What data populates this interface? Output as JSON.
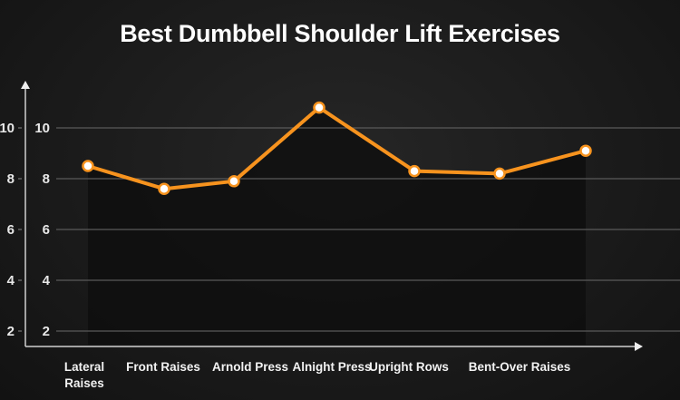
{
  "chart_data": {
    "type": "line",
    "title": "Best Dumbbell Shoulder Lift Exercises",
    "categories": [
      "Lateral Raises",
      "Front Raises",
      "Arnold Press",
      "Alnight Press",
      "Upright Rows",
      "Bent-Over Raises",
      ""
    ],
    "values": [
      8.5,
      7.6,
      7.9,
      10.8,
      8.3,
      8.2,
      9.1
    ],
    "yticks": [
      2,
      4,
      6,
      8,
      10
    ],
    "ylim": [
      1.3,
      11.5
    ],
    "grid": true,
    "xlabel": "",
    "ylabel": "",
    "colors": {
      "line": "#f7931e",
      "marker_fill": "#ffffff",
      "background": "#1b1b1b"
    }
  }
}
